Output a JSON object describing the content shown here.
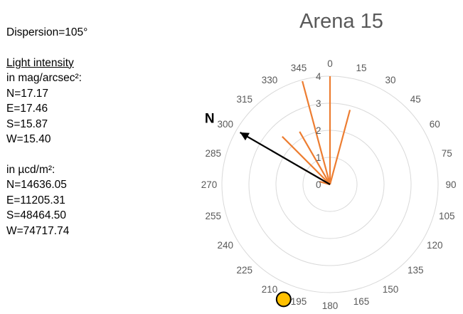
{
  "info": {
    "dispersion": "Dispersion=105°",
    "light_intensity_heading": "Light intensity",
    "mag_unit_line": "in mag/arcsec²:",
    "mag_values": [
      "N=17.17",
      "E=17.46",
      "S=15.87",
      "W=15.40"
    ],
    "ucd_unit_line": "in µcd/m²:",
    "ucd_values": [
      "N=14636.05",
      "E=11205.31",
      "S=48464.50",
      "W=74717.74"
    ]
  },
  "chart_data": {
    "type": "polar-bar",
    "title": "Arena 15",
    "angular_ticks": [
      "0",
      "15",
      "30",
      "45",
      "60",
      "75",
      "90",
      "105",
      "120",
      "135",
      "150",
      "165",
      "180",
      "195",
      "210",
      "225",
      "240",
      "255",
      "270",
      "285",
      "300",
      "315",
      "330",
      "345"
    ],
    "radial_ticks": [
      "0",
      "1",
      "2",
      "3",
      "4"
    ],
    "rlim": [
      0,
      4
    ],
    "grid": true,
    "spokes": [
      {
        "angle": 0,
        "value": 4.0
      },
      {
        "angle": 15,
        "value": 2.85
      },
      {
        "angle": 300,
        "value": 1.3
      },
      {
        "angle": 315,
        "value": 2.5
      },
      {
        "angle": 330,
        "value": 2.25
      },
      {
        "angle": 345,
        "value": 3.95
      },
      {
        "angle": 285,
        "value": 0.4
      }
    ],
    "north_arrow": {
      "label": "N",
      "angle": 300
    },
    "sun_marker_angle": 202,
    "colors": {
      "spoke": "#ed7d31",
      "grid": "#d9d9d9",
      "arrow": "#000000",
      "sun_fill": "#ffc000",
      "sun_stroke": "#000000"
    }
  }
}
